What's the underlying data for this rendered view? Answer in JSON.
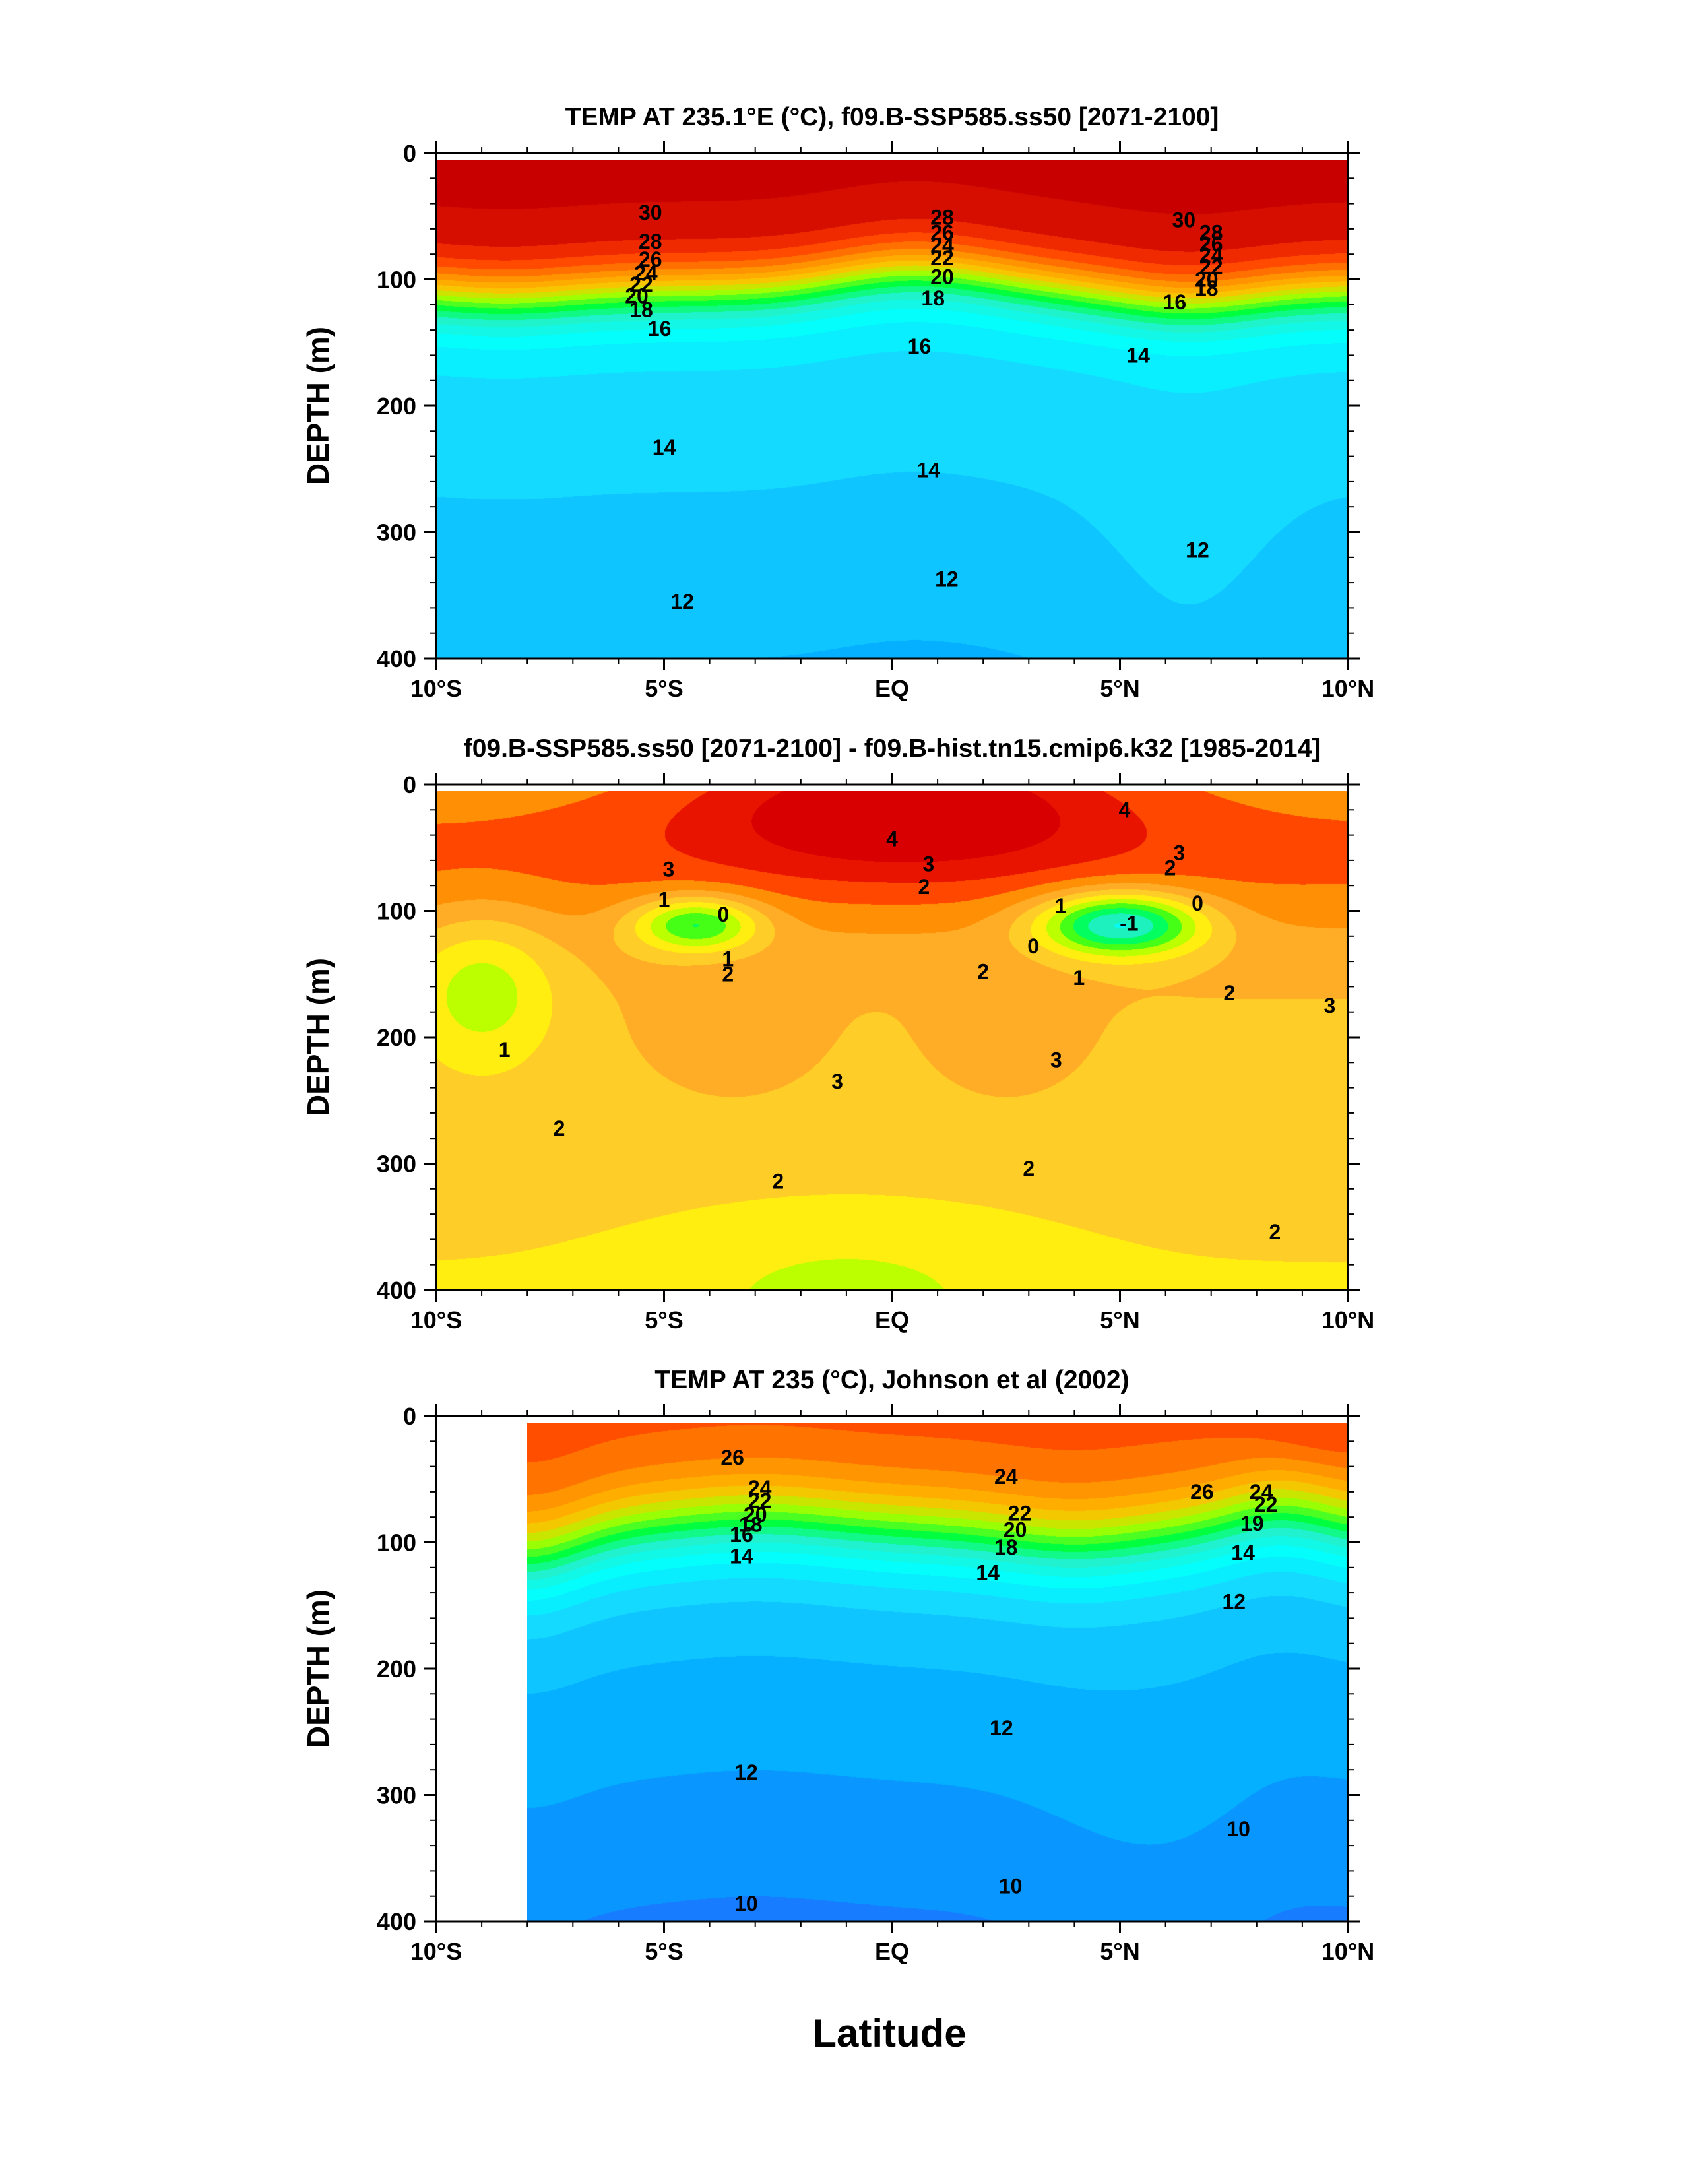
{
  "figure": {
    "xlabel": "Latitude"
  },
  "chart_data": [
    {
      "type": "heatmap",
      "title": "TEMP AT 235.1°E (°C), f09.B-SSP585.ss50 [2071-2100]",
      "ylabel": "DEPTH (m)",
      "xlabel": "",
      "xlim": [
        -10,
        10
      ],
      "ylim": [
        400,
        0
      ],
      "yticks": [
        0,
        100,
        200,
        300,
        400
      ],
      "xticks": [
        "10°S",
        "5°S",
        "EQ",
        "5°N",
        "10°N"
      ],
      "colormap": "rainbow",
      "colormap_stops": [
        "#1e6eff",
        "#00a8ff",
        "#17d4ff",
        "#00ffff",
        "#21f2d3",
        "#00ff3c",
        "#a6ff00",
        "#ffc000",
        "#ff8b00",
        "#ff3b00",
        "#c80000"
      ],
      "contour_interval": 1,
      "value_range": [
        10,
        31
      ],
      "contour_labels": [
        {
          "value": "30",
          "lat": -5.3,
          "depth": 47
        },
        {
          "value": "28",
          "lat": -5.3,
          "depth": 70
        },
        {
          "value": "26",
          "lat": -5.3,
          "depth": 84
        },
        {
          "value": "24",
          "lat": -5.4,
          "depth": 95
        },
        {
          "value": "22",
          "lat": -5.5,
          "depth": 104
        },
        {
          "value": "20",
          "lat": -5.6,
          "depth": 113
        },
        {
          "value": "18",
          "lat": -5.5,
          "depth": 124
        },
        {
          "value": "16",
          "lat": -5.1,
          "depth": 139
        },
        {
          "value": "28",
          "lat": 1.1,
          "depth": 51
        },
        {
          "value": "26",
          "lat": 1.1,
          "depth": 63
        },
        {
          "value": "24",
          "lat": 1.1,
          "depth": 73
        },
        {
          "value": "22",
          "lat": 1.1,
          "depth": 83
        },
        {
          "value": "20",
          "lat": 1.1,
          "depth": 98
        },
        {
          "value": "18",
          "lat": 0.9,
          "depth": 115
        },
        {
          "value": "16",
          "lat": 0.6,
          "depth": 153
        },
        {
          "value": "30",
          "lat": 6.4,
          "depth": 53
        },
        {
          "value": "28",
          "lat": 7.0,
          "depth": 63
        },
        {
          "value": "26",
          "lat": 7.0,
          "depth": 72
        },
        {
          "value": "24",
          "lat": 7.0,
          "depth": 81
        },
        {
          "value": "22",
          "lat": 7.0,
          "depth": 90
        },
        {
          "value": "20",
          "lat": 6.9,
          "depth": 100
        },
        {
          "value": "18",
          "lat": 6.9,
          "depth": 107
        },
        {
          "value": "16",
          "lat": 6.2,
          "depth": 118
        },
        {
          "value": "14",
          "lat": 5.4,
          "depth": 160
        },
        {
          "value": "14",
          "lat": -5.0,
          "depth": 233
        },
        {
          "value": "14",
          "lat": 0.8,
          "depth": 251
        },
        {
          "value": "12",
          "lat": 6.7,
          "depth": 314
        },
        {
          "value": "12",
          "lat": 1.2,
          "depth": 337
        },
        {
          "value": "12",
          "lat": -4.6,
          "depth": 355
        }
      ]
    },
    {
      "type": "heatmap",
      "title": "f09.B-SSP585.ss50 [2071-2100] - f09.B-hist.tn15.cmip6.k32 [1985-2014]",
      "ylabel": "DEPTH (m)",
      "xlabel": "",
      "xlim": [
        -10,
        10
      ],
      "ylim": [
        400,
        0
      ],
      "yticks": [
        0,
        100,
        200,
        300,
        400
      ],
      "xticks": [
        "10°S",
        "5°S",
        "EQ",
        "5°N",
        "10°N"
      ],
      "colormap": "rainbow",
      "colormap_stops": [
        "#16d6ff",
        "#00ffff",
        "#20f0c8",
        "#00ff56",
        "#5cff00",
        "#ffff00",
        "#ffd626",
        "#ffb02a",
        "#ff8c00",
        "#ff3000",
        "#d80000"
      ],
      "contour_interval": 0.5,
      "value_range": [
        -1.5,
        4.5
      ],
      "contour_labels": [
        {
          "value": "4",
          "lat": 5.1,
          "depth": 20
        },
        {
          "value": "4",
          "lat": 0.0,
          "depth": 43
        },
        {
          "value": "3",
          "lat": 0.8,
          "depth": 63
        },
        {
          "value": "3",
          "lat": 6.3,
          "depth": 54
        },
        {
          "value": "3",
          "lat": -4.9,
          "depth": 67
        },
        {
          "value": "2",
          "lat": 6.1,
          "depth": 66
        },
        {
          "value": "2",
          "lat": 0.7,
          "depth": 81
        },
        {
          "value": "1",
          "lat": 3.7,
          "depth": 96
        },
        {
          "value": "0",
          "lat": 6.7,
          "depth": 94
        },
        {
          "value": "-1",
          "lat": 5.2,
          "depth": 110
        },
        {
          "value": "1",
          "lat": -5.0,
          "depth": 91
        },
        {
          "value": "0",
          "lat": -3.7,
          "depth": 103
        },
        {
          "value": "0",
          "lat": 3.1,
          "depth": 128
        },
        {
          "value": "1",
          "lat": 4.1,
          "depth": 153
        },
        {
          "value": "1",
          "lat": -3.6,
          "depth": 138
        },
        {
          "value": "2",
          "lat": -3.6,
          "depth": 150
        },
        {
          "value": "2",
          "lat": 2.0,
          "depth": 148
        },
        {
          "value": "2",
          "lat": 7.4,
          "depth": 165
        },
        {
          "value": "3",
          "lat": 9.6,
          "depth": 175
        },
        {
          "value": "1",
          "lat": -8.5,
          "depth": 210
        },
        {
          "value": "3",
          "lat": 3.6,
          "depth": 218
        },
        {
          "value": "3",
          "lat": -1.2,
          "depth": 235
        },
        {
          "value": "2",
          "lat": -7.3,
          "depth": 272
        },
        {
          "value": "2",
          "lat": 3.0,
          "depth": 304
        },
        {
          "value": "2",
          "lat": -2.5,
          "depth": 314
        },
        {
          "value": "2",
          "lat": 8.4,
          "depth": 354
        }
      ]
    },
    {
      "type": "heatmap",
      "title": "TEMP AT 235 (°C), Johnson et al (2002)",
      "ylabel": "DEPTH (m)",
      "xlabel": "Latitude",
      "xlim": [
        -10,
        10
      ],
      "ylim": [
        400,
        0
      ],
      "yticks": [
        0,
        100,
        200,
        300,
        400
      ],
      "xticks": [
        "10°S",
        "5°S",
        "EQ",
        "5°N",
        "10°N"
      ],
      "data_extent_lat": [
        -8,
        10
      ],
      "colormap": "rainbow",
      "colormap_stops": [
        "#1e6eff",
        "#00a8ff",
        "#17d4ff",
        "#00ffff",
        "#21f2d3",
        "#00ff3c",
        "#a6ff00",
        "#ffc000",
        "#ff8b00",
        "#ff3b00"
      ],
      "contour_interval": 1,
      "value_range": [
        9,
        28
      ],
      "contour_labels": [
        {
          "value": "26",
          "lat": -3.5,
          "depth": 33
        },
        {
          "value": "24",
          "lat": -2.9,
          "depth": 57
        },
        {
          "value": "22",
          "lat": -2.9,
          "depth": 67
        },
        {
          "value": "20",
          "lat": -3.0,
          "depth": 78
        },
        {
          "value": "18",
          "lat": -3.1,
          "depth": 86
        },
        {
          "value": "16",
          "lat": -3.3,
          "depth": 94
        },
        {
          "value": "14",
          "lat": -3.3,
          "depth": 111
        },
        {
          "value": "24",
          "lat": 2.5,
          "depth": 48
        },
        {
          "value": "22",
          "lat": 2.8,
          "depth": 77
        },
        {
          "value": "20",
          "lat": 2.7,
          "depth": 90
        },
        {
          "value": "18",
          "lat": 2.5,
          "depth": 104
        },
        {
          "value": "14",
          "lat": 2.1,
          "depth": 124
        },
        {
          "value": "26",
          "lat": 6.8,
          "depth": 60
        },
        {
          "value": "24",
          "lat": 8.1,
          "depth": 60
        },
        {
          "value": "22",
          "lat": 8.2,
          "depth": 70
        },
        {
          "value": "19",
          "lat": 7.9,
          "depth": 85
        },
        {
          "value": "14",
          "lat": 7.7,
          "depth": 108
        },
        {
          "value": "12",
          "lat": 7.5,
          "depth": 147
        },
        {
          "value": "12",
          "lat": 2.4,
          "depth": 247
        },
        {
          "value": "12",
          "lat": -3.2,
          "depth": 282
        },
        {
          "value": "10",
          "lat": 7.6,
          "depth": 327
        },
        {
          "value": "10",
          "lat": 2.6,
          "depth": 372
        },
        {
          "value": "10",
          "lat": -3.2,
          "depth": 386
        }
      ]
    }
  ]
}
